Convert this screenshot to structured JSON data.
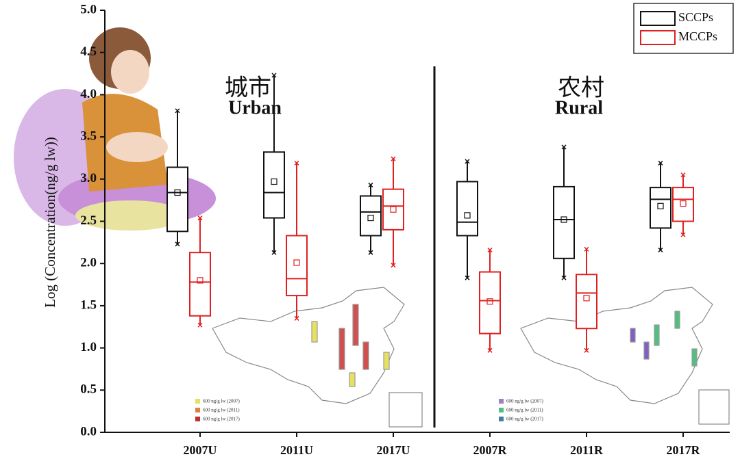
{
  "chart_data": {
    "type": "box",
    "ylabel": "Log (Concentration(ng/g lw))",
    "categories": [
      "2007U",
      "2011U",
      "2017U",
      "2007R",
      "2011R",
      "2017R"
    ],
    "ylim": [
      0,
      5
    ],
    "yticks": [
      {
        "value": 0,
        "label": "0.0"
      },
      0.5,
      {
        "value": 1,
        "label": "1.0"
      },
      1.5,
      {
        "value": 2,
        "label": "2.0"
      },
      2.5,
      {
        "value": 3,
        "label": "3.0"
      },
      3.5,
      {
        "value": 4,
        "label": "4.0"
      },
      4.5,
      {
        "value": 5,
        "label": "5.0"
      }
    ],
    "annotations": [
      "城市",
      "Urban",
      "农村",
      "Rural"
    ],
    "map_legend_urban": [
      "600 ng/g lw (2007)",
      "600 ng/g lw (2011)",
      "600 ng/g lw (2017)"
    ],
    "map_legend_rural": [
      "600 ng/g lw (2007)",
      "600 ng/g lw (2011)",
      "600 ng/g lw (2017)"
    ],
    "legend_position": "upper right",
    "series": [
      {
        "name": "SCCPs",
        "color": "#111111",
        "min": [
          2.23,
          2.13,
          2.13,
          1.83,
          1.83,
          2.16
        ],
        "q1": [
          2.38,
          2.54,
          2.33,
          2.33,
          2.06,
          2.42
        ],
        "median": [
          2.84,
          2.84,
          2.61,
          2.49,
          2.52,
          2.76
        ],
        "q3": [
          3.14,
          3.32,
          2.8,
          2.97,
          2.91,
          2.9
        ],
        "max": [
          3.81,
          4.23,
          2.93,
          3.21,
          3.38,
          3.19
        ],
        "mean": [
          2.84,
          2.97,
          2.54,
          2.57,
          2.52,
          2.68
        ]
      },
      {
        "name": "MCCPs",
        "color": "#e02020",
        "min": [
          1.27,
          1.35,
          1.98,
          0.97,
          0.97,
          2.34
        ],
        "q1": [
          1.38,
          1.62,
          2.4,
          1.17,
          1.23,
          2.5
        ],
        "median": [
          1.78,
          1.82,
          2.68,
          1.56,
          1.65,
          2.76
        ],
        "q3": [
          2.13,
          2.33,
          2.88,
          1.9,
          1.87,
          2.9
        ],
        "max": [
          2.54,
          3.19,
          3.24,
          2.16,
          2.17,
          3.05
        ],
        "mean": [
          1.8,
          2.01,
          2.64,
          1.55,
          1.59,
          2.71
        ]
      }
    ]
  }
}
